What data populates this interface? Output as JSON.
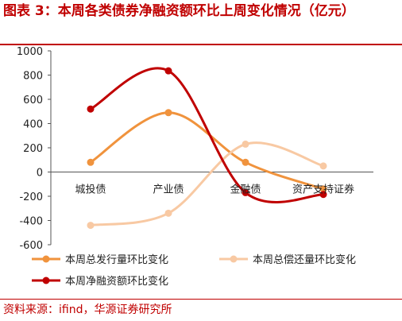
{
  "header": {
    "title": "图表 3：本周各类债券净融资额环比上周变化情况（亿元）"
  },
  "footer": {
    "source": "资料来源：ifind，华源证券研究所"
  },
  "colors": {
    "accent": "#c00000",
    "issue": "#f0933d",
    "repay": "#f8c9a3",
    "net": "#c00000"
  },
  "chart_data": {
    "type": "line",
    "categories": [
      "城投债",
      "产业债",
      "金融债",
      "资产支持证券"
    ],
    "ylim": [
      -600,
      1000
    ],
    "yticks": [
      -600,
      -400,
      -200,
      0,
      200,
      400,
      600,
      800,
      1000
    ],
    "grid": false,
    "legend_position": "bottom",
    "series": [
      {
        "name": "本周总发行量环比变化",
        "values": [
          80,
          490,
          80,
          -140
        ]
      },
      {
        "name": "本周总偿还量环比变化",
        "values": [
          -440,
          -340,
          230,
          50
        ]
      },
      {
        "name": "本周净融资额环比变化",
        "values": [
          520,
          835,
          -170,
          -185
        ]
      }
    ]
  }
}
